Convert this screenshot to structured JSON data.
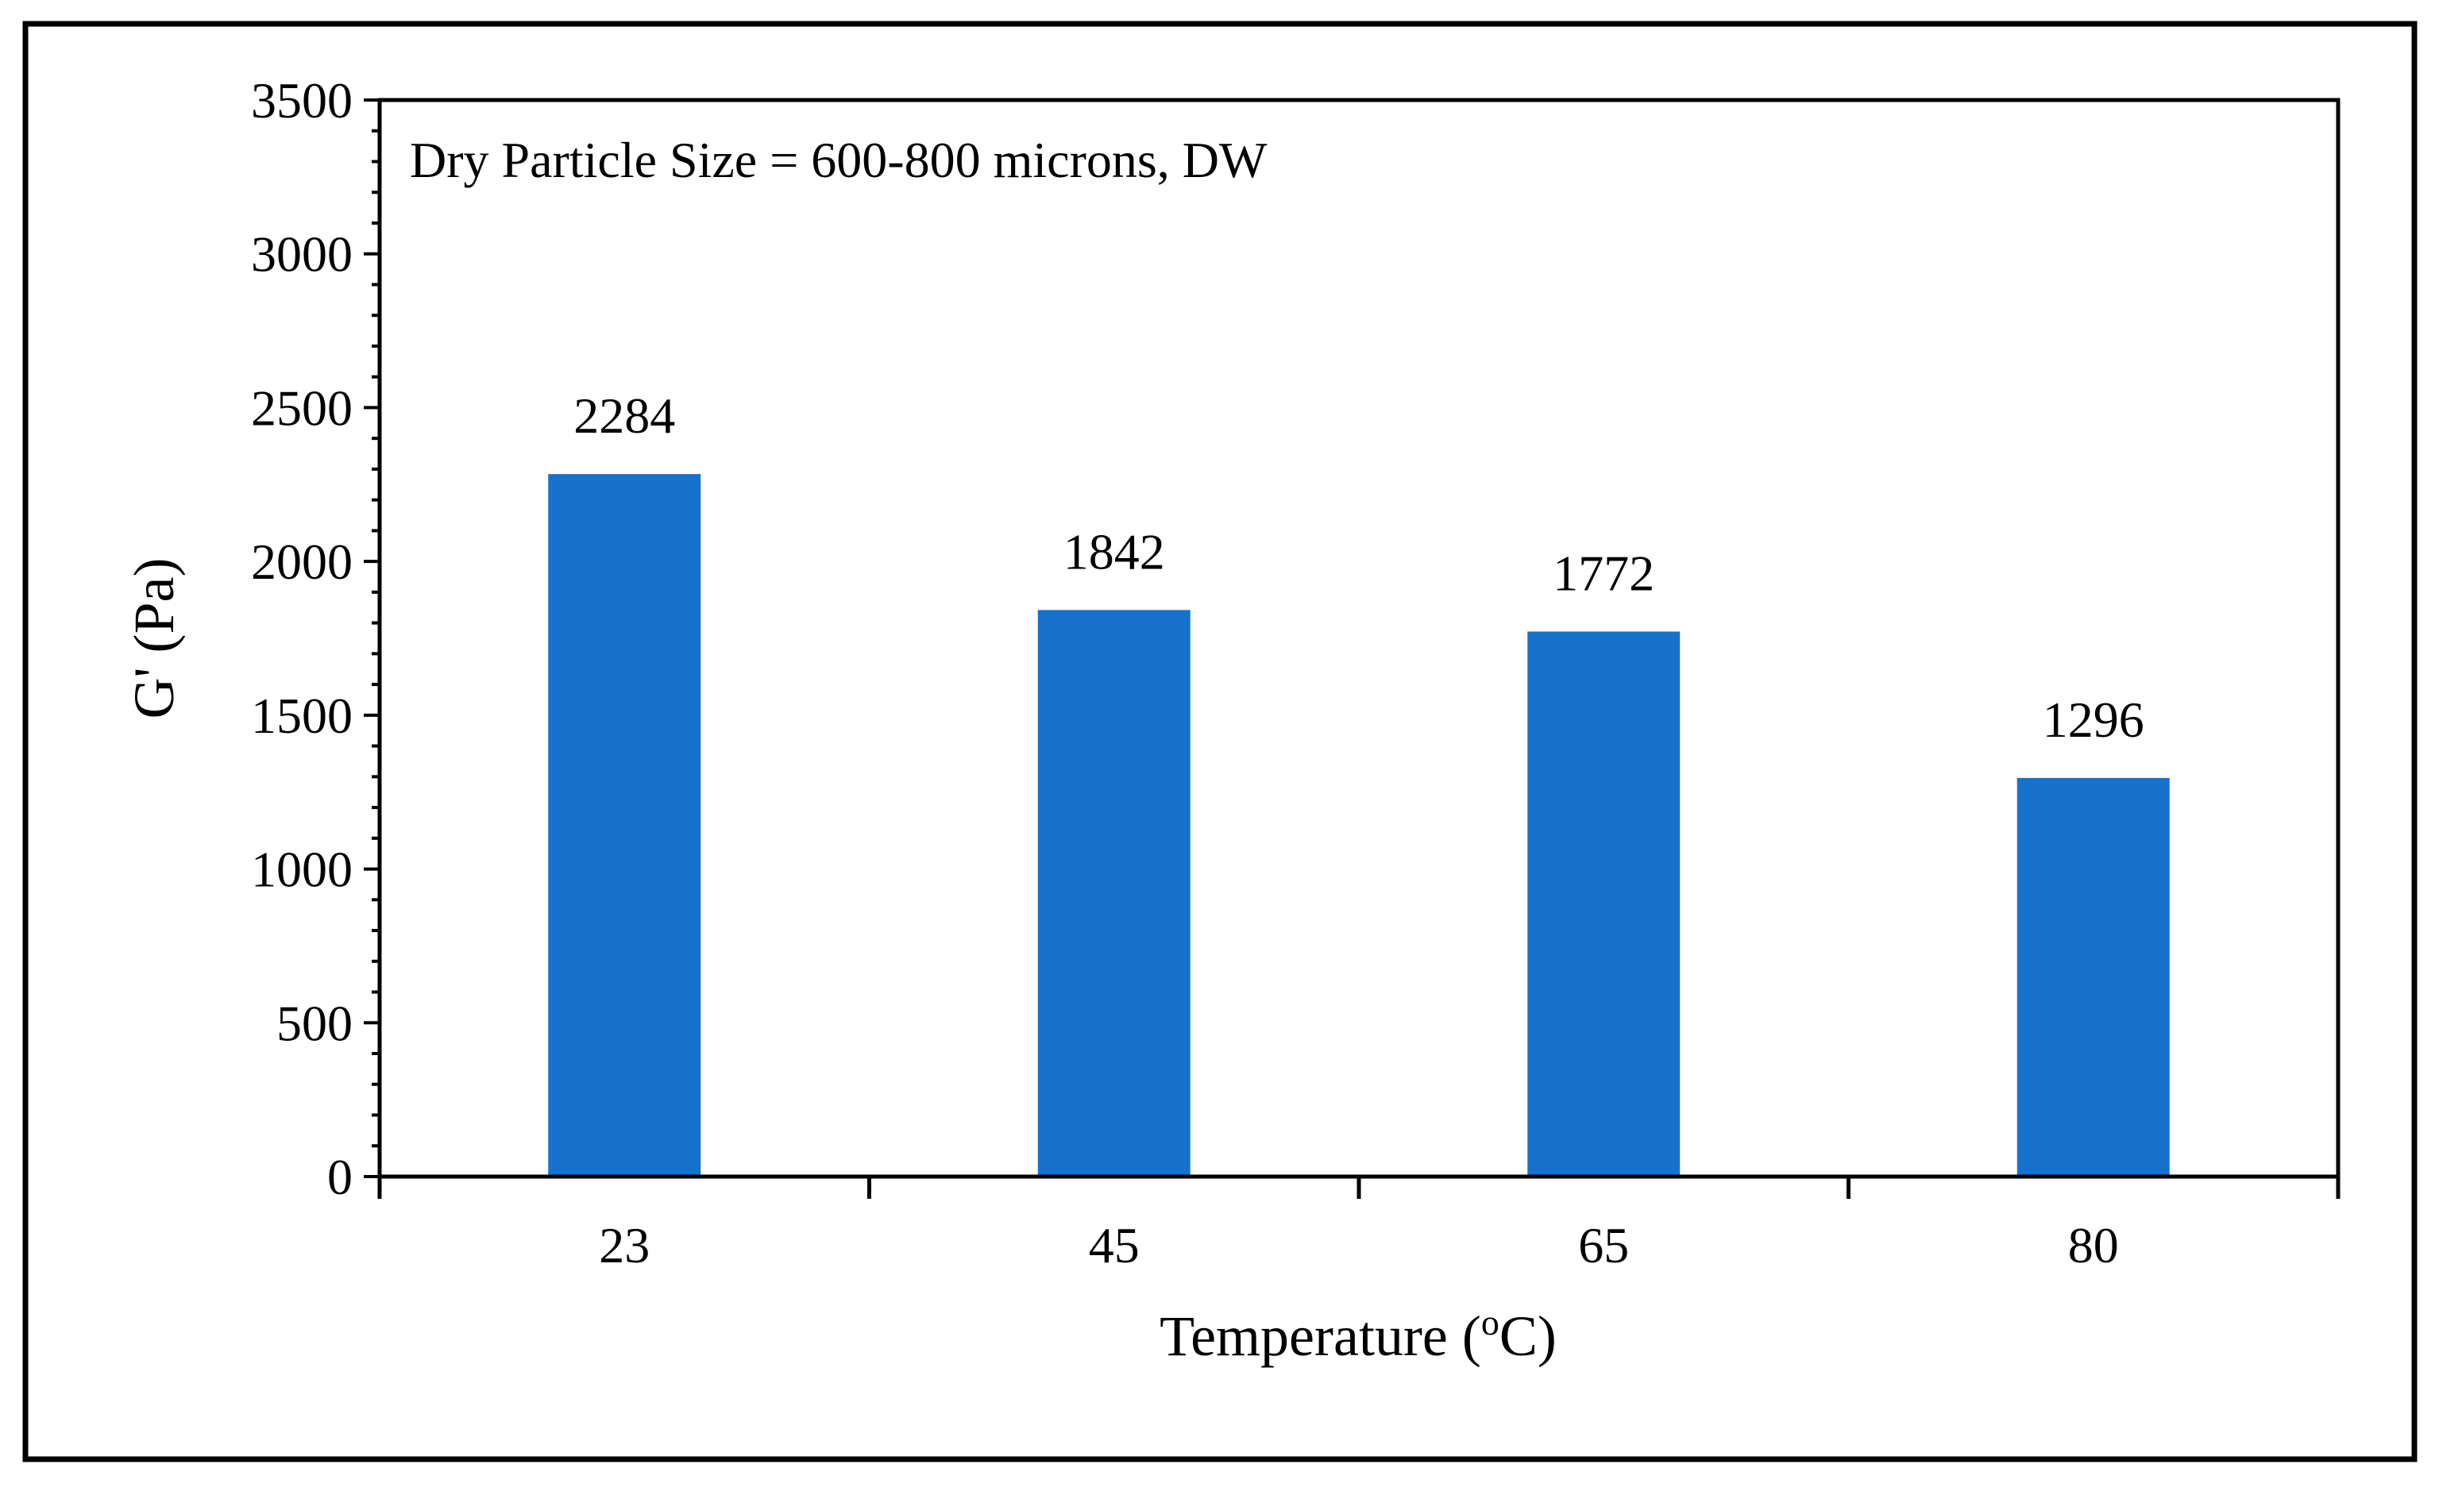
{
  "chart_data": {
    "type": "bar",
    "categories": [
      "23",
      "45",
      "65",
      "80"
    ],
    "values": [
      2284,
      1842,
      1772,
      1296
    ],
    "data_labels": [
      "2284",
      "1842",
      "1772",
      "1296"
    ],
    "annotation": "Dry Particle Size = 600-800 microns, DW",
    "xlabel_main": "Temperature (",
    "xlabel_sup": "o",
    "xlabel_end": "C)",
    "ylabel": "G' (Pa)",
    "yticks": [
      "0",
      "500",
      "1000",
      "1500",
      "2000",
      "2500",
      "3000",
      "3500"
    ],
    "ylim": [
      0,
      3500
    ],
    "ystep": 500,
    "yminor_step": 100,
    "grid": false,
    "legend": "none",
    "bar_color": "#1872CB"
  }
}
